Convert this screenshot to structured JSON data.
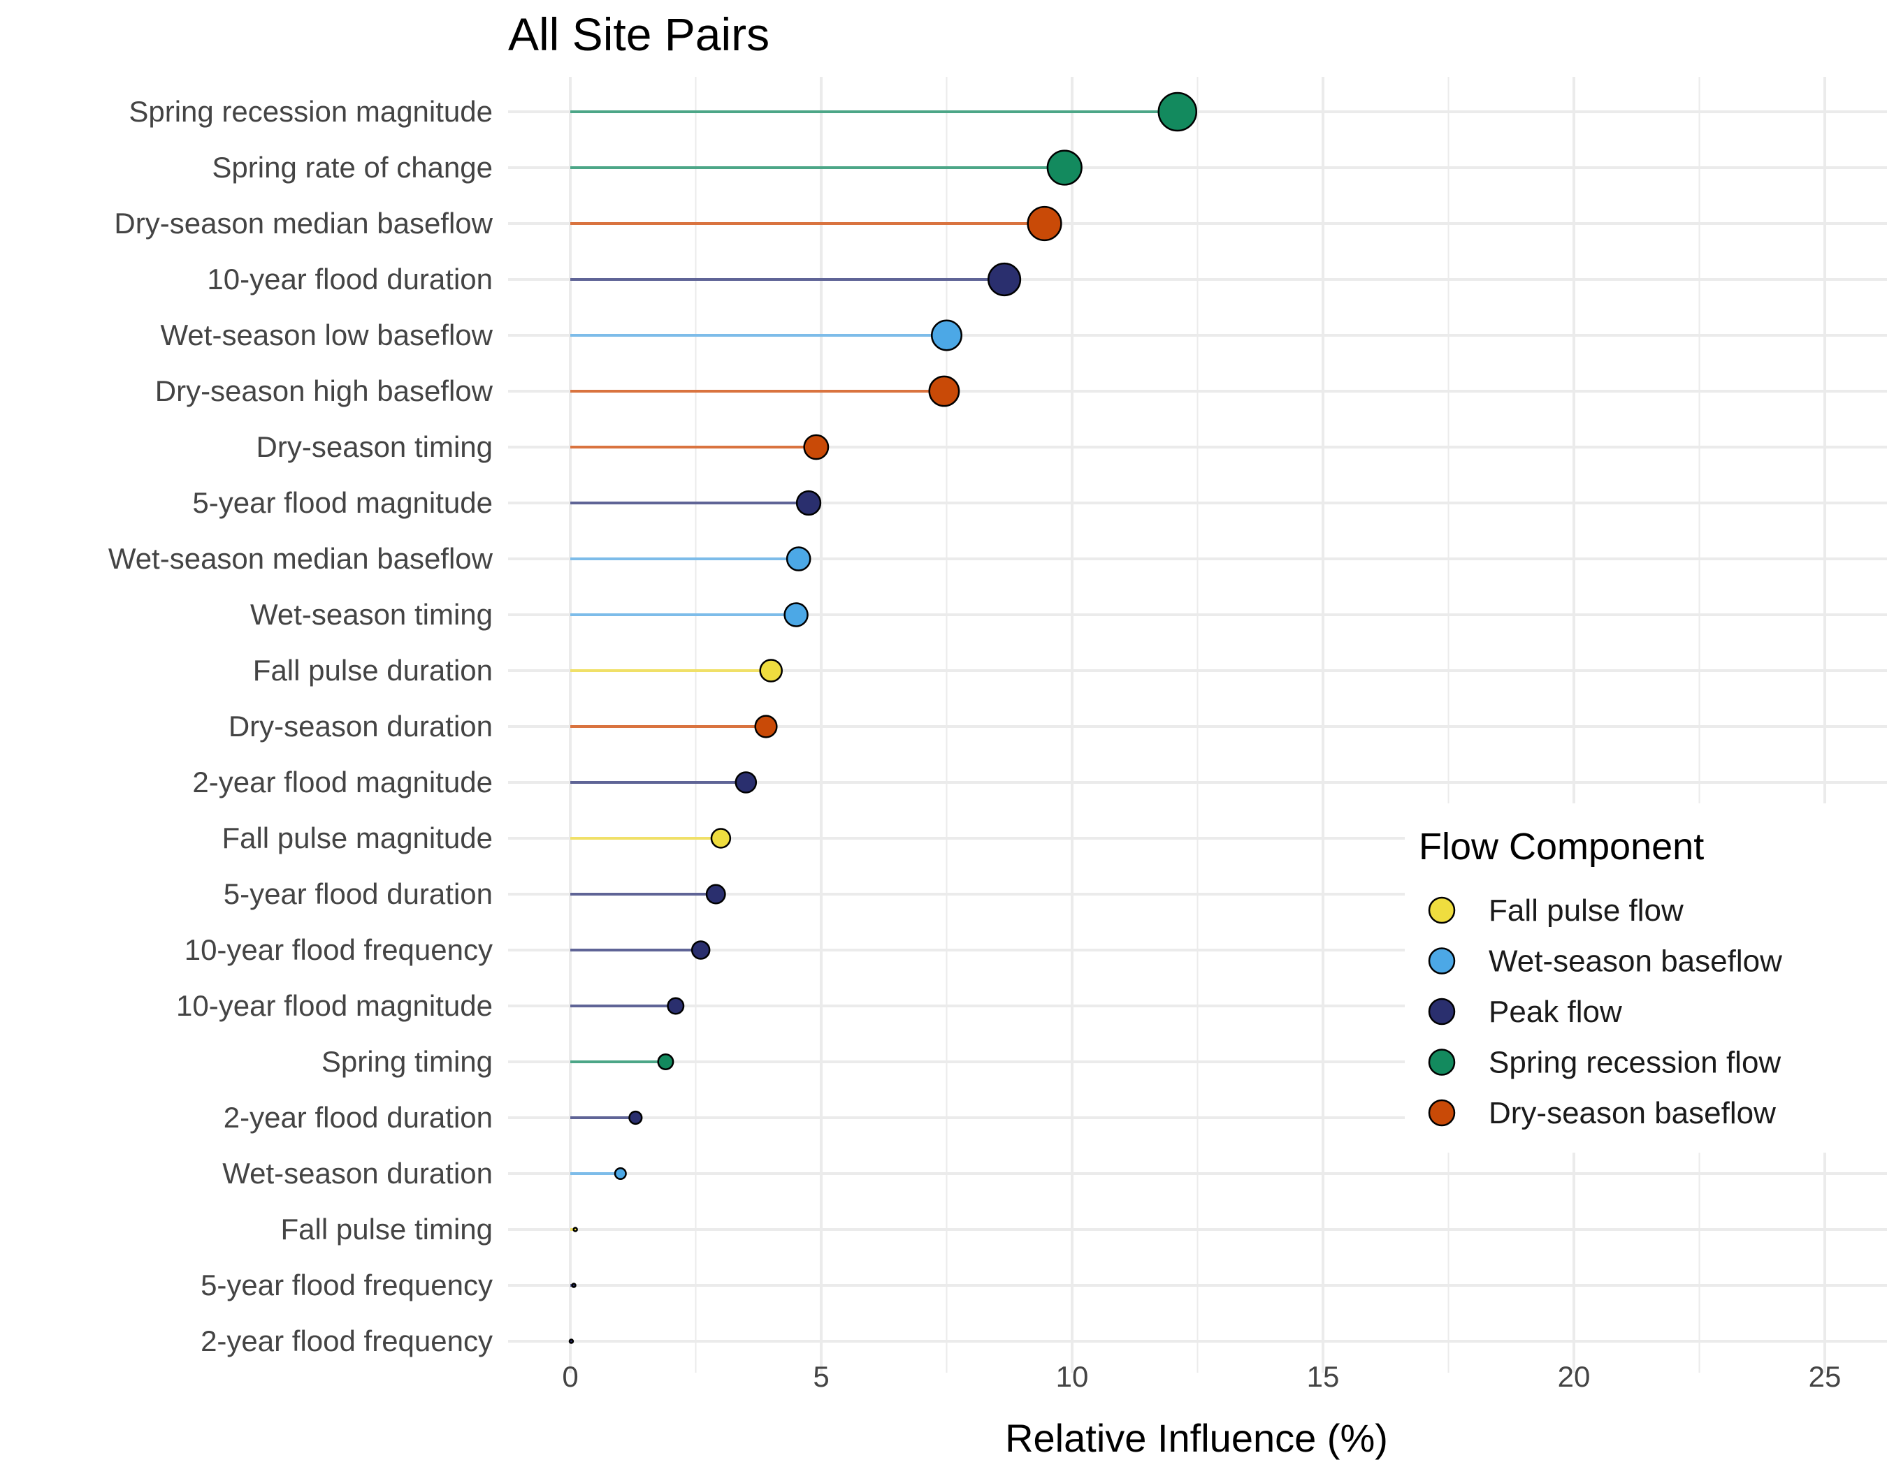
{
  "chart_data": {
    "type": "lollipop",
    "title": "All Site Pairs",
    "xlabel": "Relative Influence (%)",
    "ylabel": "",
    "xlim": [
      0,
      25
    ],
    "xticks": [
      0,
      5,
      10,
      15,
      20,
      25
    ],
    "grid": true,
    "legend": {
      "title": "Flow Component",
      "position": "right"
    },
    "components": [
      {
        "name": "Fall pulse flow",
        "color": "#EFDD3F",
        "line_color": "#F0E068"
      },
      {
        "name": "Wet-season baseflow",
        "color": "#4CA8E6",
        "line_color": "#7DBCE9"
      },
      {
        "name": "Peak flow",
        "color": "#2A2F6E",
        "line_color": "#5F6496"
      },
      {
        "name": "Spring recession flow",
        "color": "#138A5E",
        "line_color": "#4CA687"
      },
      {
        "name": "Dry-season baseflow",
        "color": "#C94A07",
        "line_color": "#D9733F"
      }
    ],
    "items": [
      {
        "label": "Spring recession magnitude",
        "value": 12.1,
        "component": "Spring recession flow"
      },
      {
        "label": "Spring rate of change",
        "value": 9.85,
        "component": "Spring recession flow"
      },
      {
        "label": "Dry-season median baseflow",
        "value": 9.45,
        "component": "Dry-season baseflow"
      },
      {
        "label": "10-year flood duration",
        "value": 8.65,
        "component": "Peak flow"
      },
      {
        "label": "Wet-season low baseflow",
        "value": 7.5,
        "component": "Wet-season baseflow"
      },
      {
        "label": "Dry-season high baseflow",
        "value": 7.45,
        "component": "Dry-season baseflow"
      },
      {
        "label": "Dry-season timing",
        "value": 4.9,
        "component": "Dry-season baseflow"
      },
      {
        "label": "5-year flood magnitude",
        "value": 4.75,
        "component": "Peak flow"
      },
      {
        "label": "Wet-season median baseflow",
        "value": 4.55,
        "component": "Wet-season baseflow"
      },
      {
        "label": "Wet-season timing",
        "value": 4.5,
        "component": "Wet-season baseflow"
      },
      {
        "label": "Fall pulse duration",
        "value": 4.0,
        "component": "Fall pulse flow"
      },
      {
        "label": "Dry-season duration",
        "value": 3.9,
        "component": "Dry-season baseflow"
      },
      {
        "label": "2-year flood magnitude",
        "value": 3.5,
        "component": "Peak flow"
      },
      {
        "label": "Fall pulse magnitude",
        "value": 3.0,
        "component": "Fall pulse flow"
      },
      {
        "label": "5-year flood duration",
        "value": 2.9,
        "component": "Peak flow"
      },
      {
        "label": "10-year flood frequency",
        "value": 2.6,
        "component": "Peak flow"
      },
      {
        "label": "10-year flood magnitude",
        "value": 2.1,
        "component": "Peak flow"
      },
      {
        "label": "Spring timing",
        "value": 1.9,
        "component": "Spring recession flow"
      },
      {
        "label": "2-year flood duration",
        "value": 1.3,
        "component": "Peak flow"
      },
      {
        "label": "Wet-season duration",
        "value": 1.0,
        "component": "Wet-season baseflow"
      },
      {
        "label": "Fall pulse timing",
        "value": 0.1,
        "component": "Fall pulse flow"
      },
      {
        "label": "5-year flood frequency",
        "value": 0.07,
        "component": "Peak flow"
      },
      {
        "label": "2-year flood frequency",
        "value": 0.02,
        "component": "Peak flow"
      }
    ]
  }
}
